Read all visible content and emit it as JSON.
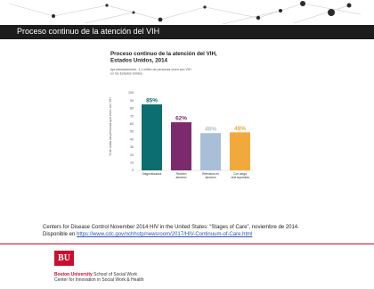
{
  "slide": {
    "title": "Proceso continuo de la atención del VIH"
  },
  "chart_data": {
    "type": "bar",
    "title": "Proceso continuo de la atención del VIH, Estados Unidos, 2014",
    "subtitle": "Aproximadamente, 1,1 millón de personas viven con VIH en los Estados Unidos.",
    "ylabel": "% de todas las personas que viven con VIH",
    "xlabel": "",
    "ylim": [
      0,
      100
    ],
    "yticks": [
      0,
      10,
      20,
      30,
      40,
      50,
      60,
      70,
      80,
      90,
      100
    ],
    "grid": false,
    "categories": [
      "Diagnosticados",
      "Reciben atención",
      "Retenidos en atención",
      "Con carga viral suprimida"
    ],
    "values": [
      85,
      62,
      48,
      49
    ],
    "data_labels": [
      "85%",
      "62%",
      "48%",
      "49%"
    ],
    "colors": [
      "#0d6e72",
      "#7b2a6e",
      "#a9bfd8",
      "#f2a93b"
    ]
  },
  "source": {
    "line1": "Centers for Disease Control November 2014 HIV in the United States: “Stages of Care”, noviembre de 2014.",
    "prefix": "Disponible en ",
    "link": "https://www.cdc.gov/nchhstp/newsroom/2017/HIV-Continuum-of-Care.html"
  },
  "footer": {
    "logo_text": "BU",
    "university": "Boston University",
    "school": " School of Social Work",
    "center": "Center for Innovation in Social Work & Health"
  },
  "colors": {
    "accent": "#c8102e",
    "title_bar": "#1c1c1c"
  }
}
